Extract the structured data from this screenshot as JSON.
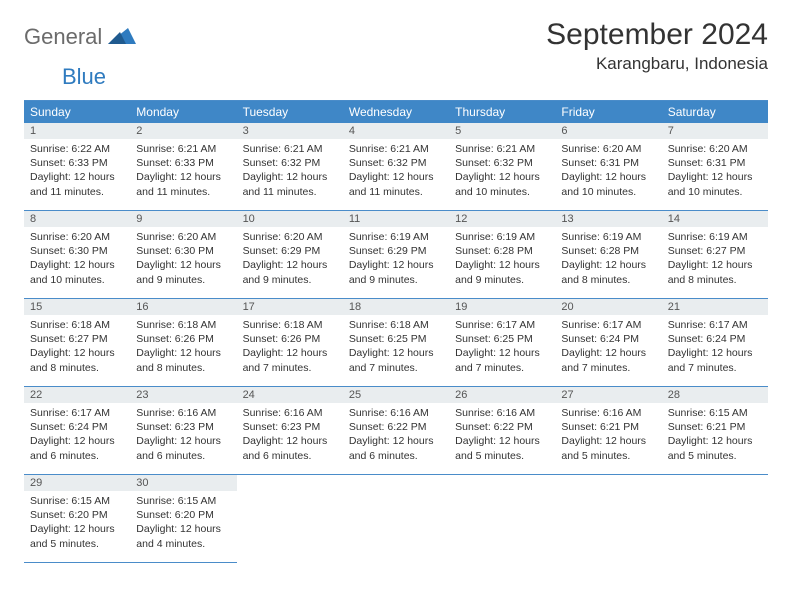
{
  "brand": {
    "part1": "General",
    "part2": "Blue"
  },
  "title": "September 2024",
  "location": "Karangbaru, Indonesia",
  "colors": {
    "header_bg": "#3f87c7",
    "header_text": "#ffffff",
    "line": "#4a8cc9",
    "daybar_bg": "#e9edef",
    "body_text": "#333333",
    "logo_gray": "#6b6b6b",
    "logo_blue": "#2f7bbf",
    "page_bg": "#ffffff"
  },
  "weekdays": [
    "Sunday",
    "Monday",
    "Tuesday",
    "Wednesday",
    "Thursday",
    "Friday",
    "Saturday"
  ],
  "days": [
    {
      "n": 1,
      "sunrise": "6:22 AM",
      "sunset": "6:33 PM",
      "daylight": "12 hours and 11 minutes."
    },
    {
      "n": 2,
      "sunrise": "6:21 AM",
      "sunset": "6:33 PM",
      "daylight": "12 hours and 11 minutes."
    },
    {
      "n": 3,
      "sunrise": "6:21 AM",
      "sunset": "6:32 PM",
      "daylight": "12 hours and 11 minutes."
    },
    {
      "n": 4,
      "sunrise": "6:21 AM",
      "sunset": "6:32 PM",
      "daylight": "12 hours and 11 minutes."
    },
    {
      "n": 5,
      "sunrise": "6:21 AM",
      "sunset": "6:32 PM",
      "daylight": "12 hours and 10 minutes."
    },
    {
      "n": 6,
      "sunrise": "6:20 AM",
      "sunset": "6:31 PM",
      "daylight": "12 hours and 10 minutes."
    },
    {
      "n": 7,
      "sunrise": "6:20 AM",
      "sunset": "6:31 PM",
      "daylight": "12 hours and 10 minutes."
    },
    {
      "n": 8,
      "sunrise": "6:20 AM",
      "sunset": "6:30 PM",
      "daylight": "12 hours and 10 minutes."
    },
    {
      "n": 9,
      "sunrise": "6:20 AM",
      "sunset": "6:30 PM",
      "daylight": "12 hours and 9 minutes."
    },
    {
      "n": 10,
      "sunrise": "6:20 AM",
      "sunset": "6:29 PM",
      "daylight": "12 hours and 9 minutes."
    },
    {
      "n": 11,
      "sunrise": "6:19 AM",
      "sunset": "6:29 PM",
      "daylight": "12 hours and 9 minutes."
    },
    {
      "n": 12,
      "sunrise": "6:19 AM",
      "sunset": "6:28 PM",
      "daylight": "12 hours and 9 minutes."
    },
    {
      "n": 13,
      "sunrise": "6:19 AM",
      "sunset": "6:28 PM",
      "daylight": "12 hours and 8 minutes."
    },
    {
      "n": 14,
      "sunrise": "6:19 AM",
      "sunset": "6:27 PM",
      "daylight": "12 hours and 8 minutes."
    },
    {
      "n": 15,
      "sunrise": "6:18 AM",
      "sunset": "6:27 PM",
      "daylight": "12 hours and 8 minutes."
    },
    {
      "n": 16,
      "sunrise": "6:18 AM",
      "sunset": "6:26 PM",
      "daylight": "12 hours and 8 minutes."
    },
    {
      "n": 17,
      "sunrise": "6:18 AM",
      "sunset": "6:26 PM",
      "daylight": "12 hours and 7 minutes."
    },
    {
      "n": 18,
      "sunrise": "6:18 AM",
      "sunset": "6:25 PM",
      "daylight": "12 hours and 7 minutes."
    },
    {
      "n": 19,
      "sunrise": "6:17 AM",
      "sunset": "6:25 PM",
      "daylight": "12 hours and 7 minutes."
    },
    {
      "n": 20,
      "sunrise": "6:17 AM",
      "sunset": "6:24 PM",
      "daylight": "12 hours and 7 minutes."
    },
    {
      "n": 21,
      "sunrise": "6:17 AM",
      "sunset": "6:24 PM",
      "daylight": "12 hours and 7 minutes."
    },
    {
      "n": 22,
      "sunrise": "6:17 AM",
      "sunset": "6:24 PM",
      "daylight": "12 hours and 6 minutes."
    },
    {
      "n": 23,
      "sunrise": "6:16 AM",
      "sunset": "6:23 PM",
      "daylight": "12 hours and 6 minutes."
    },
    {
      "n": 24,
      "sunrise": "6:16 AM",
      "sunset": "6:23 PM",
      "daylight": "12 hours and 6 minutes."
    },
    {
      "n": 25,
      "sunrise": "6:16 AM",
      "sunset": "6:22 PM",
      "daylight": "12 hours and 6 minutes."
    },
    {
      "n": 26,
      "sunrise": "6:16 AM",
      "sunset": "6:22 PM",
      "daylight": "12 hours and 5 minutes."
    },
    {
      "n": 27,
      "sunrise": "6:16 AM",
      "sunset": "6:21 PM",
      "daylight": "12 hours and 5 minutes."
    },
    {
      "n": 28,
      "sunrise": "6:15 AM",
      "sunset": "6:21 PM",
      "daylight": "12 hours and 5 minutes."
    },
    {
      "n": 29,
      "sunrise": "6:15 AM",
      "sunset": "6:20 PM",
      "daylight": "12 hours and 5 minutes."
    },
    {
      "n": 30,
      "sunrise": "6:15 AM",
      "sunset": "6:20 PM",
      "daylight": "12 hours and 4 minutes."
    }
  ],
  "labels": {
    "sunrise": "Sunrise:",
    "sunset": "Sunset:",
    "daylight": "Daylight:"
  },
  "layout": {
    "start_weekday": 0,
    "columns": 7,
    "trailing_empty": 5
  }
}
